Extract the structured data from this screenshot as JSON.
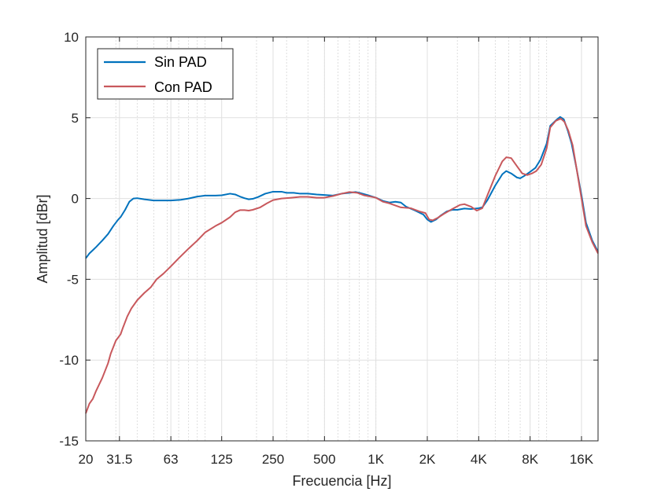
{
  "chart_data": {
    "type": "line",
    "xlabel": "Frecuencia [Hz]",
    "ylabel": "Amplitud [dBr]",
    "xscale": "log",
    "xlim": [
      20,
      20000
    ],
    "ylim": [
      -15,
      10
    ],
    "xticks": [
      {
        "value": 20,
        "label": "20"
      },
      {
        "value": 31.5,
        "label": "31.5"
      },
      {
        "value": 63,
        "label": "63"
      },
      {
        "value": 125,
        "label": "125"
      },
      {
        "value": 250,
        "label": "250"
      },
      {
        "value": 500,
        "label": "500"
      },
      {
        "value": 1000,
        "label": "1K"
      },
      {
        "value": 2000,
        "label": "2K"
      },
      {
        "value": 4000,
        "label": "4K"
      },
      {
        "value": 8000,
        "label": "8K"
      },
      {
        "value": 16000,
        "label": "16K"
      }
    ],
    "yticks": [
      {
        "value": 10,
        "label": "10"
      },
      {
        "value": 5,
        "label": "5"
      },
      {
        "value": 0,
        "label": "0"
      },
      {
        "value": -5,
        "label": "-5"
      },
      {
        "value": -10,
        "label": "-10"
      },
      {
        "value": -15,
        "label": "-15"
      }
    ],
    "grid": true,
    "legend_position": "top-left",
    "series": [
      {
        "name": "Sin PAD",
        "color": "#0072BD",
        "points": [
          [
            20,
            -3.7
          ],
          [
            21,
            -3.4
          ],
          [
            22,
            -3.2
          ],
          [
            23,
            -3.0
          ],
          [
            25,
            -2.6
          ],
          [
            27,
            -2.2
          ],
          [
            29,
            -1.7
          ],
          [
            31,
            -1.3
          ],
          [
            32,
            -1.15
          ],
          [
            34,
            -0.7
          ],
          [
            36,
            -0.2
          ],
          [
            38,
            0.0
          ],
          [
            40,
            0.02
          ],
          [
            44,
            -0.05
          ],
          [
            50,
            -0.12
          ],
          [
            57,
            -0.12
          ],
          [
            63,
            -0.12
          ],
          [
            72,
            -0.08
          ],
          [
            80,
            0.0
          ],
          [
            90,
            0.12
          ],
          [
            100,
            0.18
          ],
          [
            115,
            0.18
          ],
          [
            125,
            0.2
          ],
          [
            140,
            0.3
          ],
          [
            150,
            0.25
          ],
          [
            160,
            0.12
          ],
          [
            170,
            0.02
          ],
          [
            180,
            -0.05
          ],
          [
            190,
            -0.02
          ],
          [
            205,
            0.1
          ],
          [
            225,
            0.3
          ],
          [
            250,
            0.42
          ],
          [
            280,
            0.42
          ],
          [
            300,
            0.35
          ],
          [
            330,
            0.35
          ],
          [
            360,
            0.3
          ],
          [
            400,
            0.3
          ],
          [
            450,
            0.25
          ],
          [
            500,
            0.22
          ],
          [
            560,
            0.18
          ],
          [
            630,
            0.3
          ],
          [
            700,
            0.35
          ],
          [
            760,
            0.4
          ],
          [
            800,
            0.35
          ],
          [
            900,
            0.2
          ],
          [
            1000,
            0.05
          ],
          [
            1100,
            -0.15
          ],
          [
            1200,
            -0.25
          ],
          [
            1300,
            -0.2
          ],
          [
            1400,
            -0.25
          ],
          [
            1500,
            -0.5
          ],
          [
            1700,
            -0.75
          ],
          [
            1900,
            -1.0
          ],
          [
            2000,
            -1.3
          ],
          [
            2100,
            -1.45
          ],
          [
            2250,
            -1.3
          ],
          [
            2400,
            -1.05
          ],
          [
            2600,
            -0.8
          ],
          [
            2800,
            -0.7
          ],
          [
            3000,
            -0.7
          ],
          [
            3300,
            -0.62
          ],
          [
            3600,
            -0.65
          ],
          [
            4000,
            -0.6
          ],
          [
            4200,
            -0.55
          ],
          [
            4500,
            -0.1
          ],
          [
            5000,
            0.8
          ],
          [
            5500,
            1.5
          ],
          [
            5800,
            1.7
          ],
          [
            6200,
            1.55
          ],
          [
            6700,
            1.3
          ],
          [
            7000,
            1.25
          ],
          [
            7400,
            1.4
          ],
          [
            8000,
            1.65
          ],
          [
            8600,
            1.9
          ],
          [
            9200,
            2.4
          ],
          [
            10000,
            3.4
          ],
          [
            10500,
            4.5
          ],
          [
            11500,
            4.9
          ],
          [
            12000,
            5.05
          ],
          [
            12600,
            4.9
          ],
          [
            13300,
            4.2
          ],
          [
            14000,
            3.4
          ],
          [
            15000,
            1.8
          ],
          [
            16000,
            0.2
          ],
          [
            17000,
            -1.5
          ],
          [
            18500,
            -2.6
          ],
          [
            20000,
            -3.3
          ]
        ]
      },
      {
        "name": "Con PAD",
        "color": "#C8585C",
        "points": [
          [
            20,
            -13.3
          ],
          [
            21,
            -12.7
          ],
          [
            22,
            -12.4
          ],
          [
            23,
            -11.9
          ],
          [
            25,
            -11.1
          ],
          [
            27,
            -10.2
          ],
          [
            28,
            -9.6
          ],
          [
            30,
            -8.8
          ],
          [
            32,
            -8.4
          ],
          [
            33,
            -8.0
          ],
          [
            35,
            -7.3
          ],
          [
            37,
            -6.8
          ],
          [
            40,
            -6.3
          ],
          [
            44,
            -5.85
          ],
          [
            48,
            -5.5
          ],
          [
            52,
            -5.0
          ],
          [
            57,
            -4.65
          ],
          [
            63,
            -4.2
          ],
          [
            70,
            -3.7
          ],
          [
            80,
            -3.1
          ],
          [
            90,
            -2.6
          ],
          [
            100,
            -2.1
          ],
          [
            115,
            -1.7
          ],
          [
            125,
            -1.5
          ],
          [
            140,
            -1.15
          ],
          [
            150,
            -0.85
          ],
          [
            160,
            -0.72
          ],
          [
            170,
            -0.72
          ],
          [
            180,
            -0.75
          ],
          [
            190,
            -0.7
          ],
          [
            210,
            -0.55
          ],
          [
            230,
            -0.3
          ],
          [
            250,
            -0.1
          ],
          [
            280,
            0.0
          ],
          [
            320,
            0.05
          ],
          [
            360,
            0.1
          ],
          [
            400,
            0.1
          ],
          [
            450,
            0.05
          ],
          [
            500,
            0.05
          ],
          [
            560,
            0.15
          ],
          [
            630,
            0.3
          ],
          [
            700,
            0.4
          ],
          [
            780,
            0.35
          ],
          [
            850,
            0.2
          ],
          [
            1000,
            0.05
          ],
          [
            1100,
            -0.2
          ],
          [
            1200,
            -0.3
          ],
          [
            1400,
            -0.55
          ],
          [
            1600,
            -0.6
          ],
          [
            1800,
            -0.8
          ],
          [
            1950,
            -0.9
          ],
          [
            2050,
            -1.3
          ],
          [
            2150,
            -1.35
          ],
          [
            2300,
            -1.2
          ],
          [
            2500,
            -0.95
          ],
          [
            2800,
            -0.65
          ],
          [
            3100,
            -0.4
          ],
          [
            3300,
            -0.35
          ],
          [
            3600,
            -0.5
          ],
          [
            3900,
            -0.75
          ],
          [
            4200,
            -0.6
          ],
          [
            4500,
            0.2
          ],
          [
            5000,
            1.4
          ],
          [
            5500,
            2.3
          ],
          [
            5800,
            2.55
          ],
          [
            6200,
            2.5
          ],
          [
            6700,
            2.0
          ],
          [
            7200,
            1.55
          ],
          [
            7700,
            1.45
          ],
          [
            8200,
            1.55
          ],
          [
            8700,
            1.7
          ],
          [
            9300,
            2.1
          ],
          [
            10000,
            3.1
          ],
          [
            10500,
            4.4
          ],
          [
            11300,
            4.8
          ],
          [
            12100,
            4.95
          ],
          [
            12700,
            4.75
          ],
          [
            13400,
            4.2
          ],
          [
            14200,
            3.3
          ],
          [
            15000,
            1.8
          ],
          [
            16000,
            0.0
          ],
          [
            17000,
            -1.7
          ],
          [
            18500,
            -2.7
          ],
          [
            20000,
            -3.4
          ]
        ]
      }
    ]
  }
}
